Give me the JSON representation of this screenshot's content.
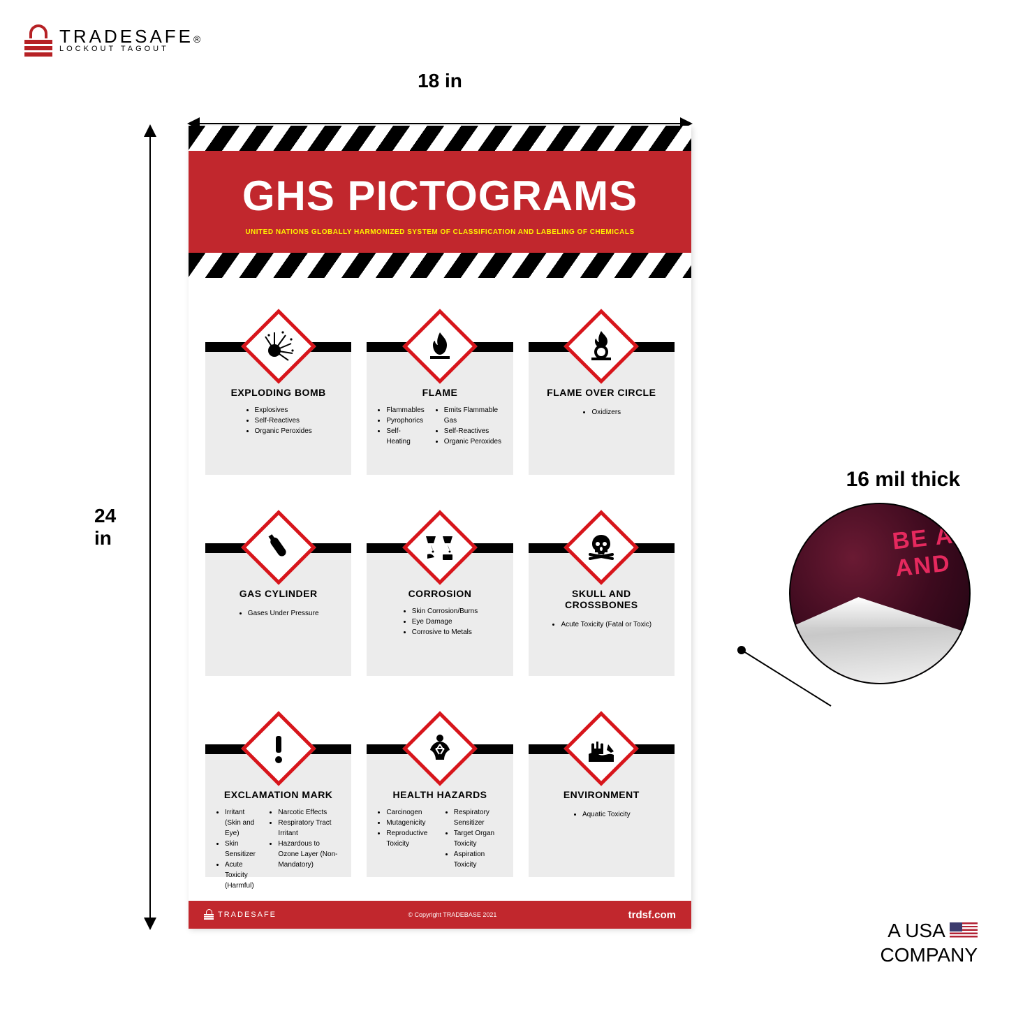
{
  "brand": {
    "name": "TRADESAFE",
    "reg": "®",
    "sub": "LOCKOUT TAGOUT"
  },
  "dims": {
    "width": "18 in",
    "height": "24 in"
  },
  "thickness": {
    "label": "16 mil thick",
    "peek_text": "BE A\nAND"
  },
  "usa": {
    "line1": "A USA",
    "line2": "COMPANY"
  },
  "poster": {
    "title": "GHS PICTOGRAMS",
    "subtitle": "UNITED NATIONS GLOBALLY HARMONIZED SYSTEM OF CLASSIFICATION AND LABELING OF CHEMICALS",
    "footer": {
      "brand": "TRADESAFE",
      "copyright": "Copyright TRADEBASE 2021",
      "url": "trdsf.com"
    },
    "colors": {
      "red": "#c1272d",
      "yellow": "#fff200",
      "diamond_border": "#d7151b",
      "box_bg": "#ececec"
    },
    "cells": [
      {
        "icon": "exploding-bomb",
        "title": "EXPLODING BOMB",
        "cols": [
          [
            "Explosives",
            "Self-Reactives",
            "Organic Peroxides"
          ]
        ]
      },
      {
        "icon": "flame",
        "title": "FLAME",
        "cols": [
          [
            "Flammables",
            "Pyrophorics",
            "Self-Heating"
          ],
          [
            "Emits Flammable Gas",
            "Self-Reactives",
            "Organic Peroxides"
          ]
        ]
      },
      {
        "icon": "flame-over-circle",
        "title": "FLAME OVER CIRCLE",
        "cols": [
          [
            "Oxidizers"
          ]
        ]
      },
      {
        "icon": "gas-cylinder",
        "title": "GAS CYLINDER",
        "cols": [
          [
            "Gases Under Pressure"
          ]
        ]
      },
      {
        "icon": "corrosion",
        "title": "CORROSION",
        "cols": [
          [
            "Skin Corrosion/Burns",
            "Eye Damage",
            "Corrosive to Metals"
          ]
        ]
      },
      {
        "icon": "skull-and-crossbones",
        "title": "SKULL AND CROSSBONES",
        "cols": [
          [
            "Acute Toxicity (Fatal or Toxic)"
          ]
        ]
      },
      {
        "icon": "exclamation-mark",
        "title": "EXCLAMATION MARK",
        "cols": [
          [
            "Irritant (Skin and Eye)",
            "Skin Sensitizer",
            "Acute Toxicity (Harmful)"
          ],
          [
            "Narcotic Effects",
            "Respiratory Tract Irritant",
            "Hazardous to Ozone Layer (Non-Mandatory)"
          ]
        ]
      },
      {
        "icon": "health-hazards",
        "title": "HEALTH HAZARDS",
        "cols": [
          [
            "Carcinogen",
            "Mutagenicity",
            "Reproductive Toxicity"
          ],
          [
            "Respiratory Sensitizer",
            "Target Organ Toxicity",
            "Aspiration Toxicity"
          ]
        ]
      },
      {
        "icon": "environment",
        "title": "ENVIRONMENT",
        "cols": [
          [
            "Aquatic Toxicity"
          ]
        ]
      }
    ]
  }
}
